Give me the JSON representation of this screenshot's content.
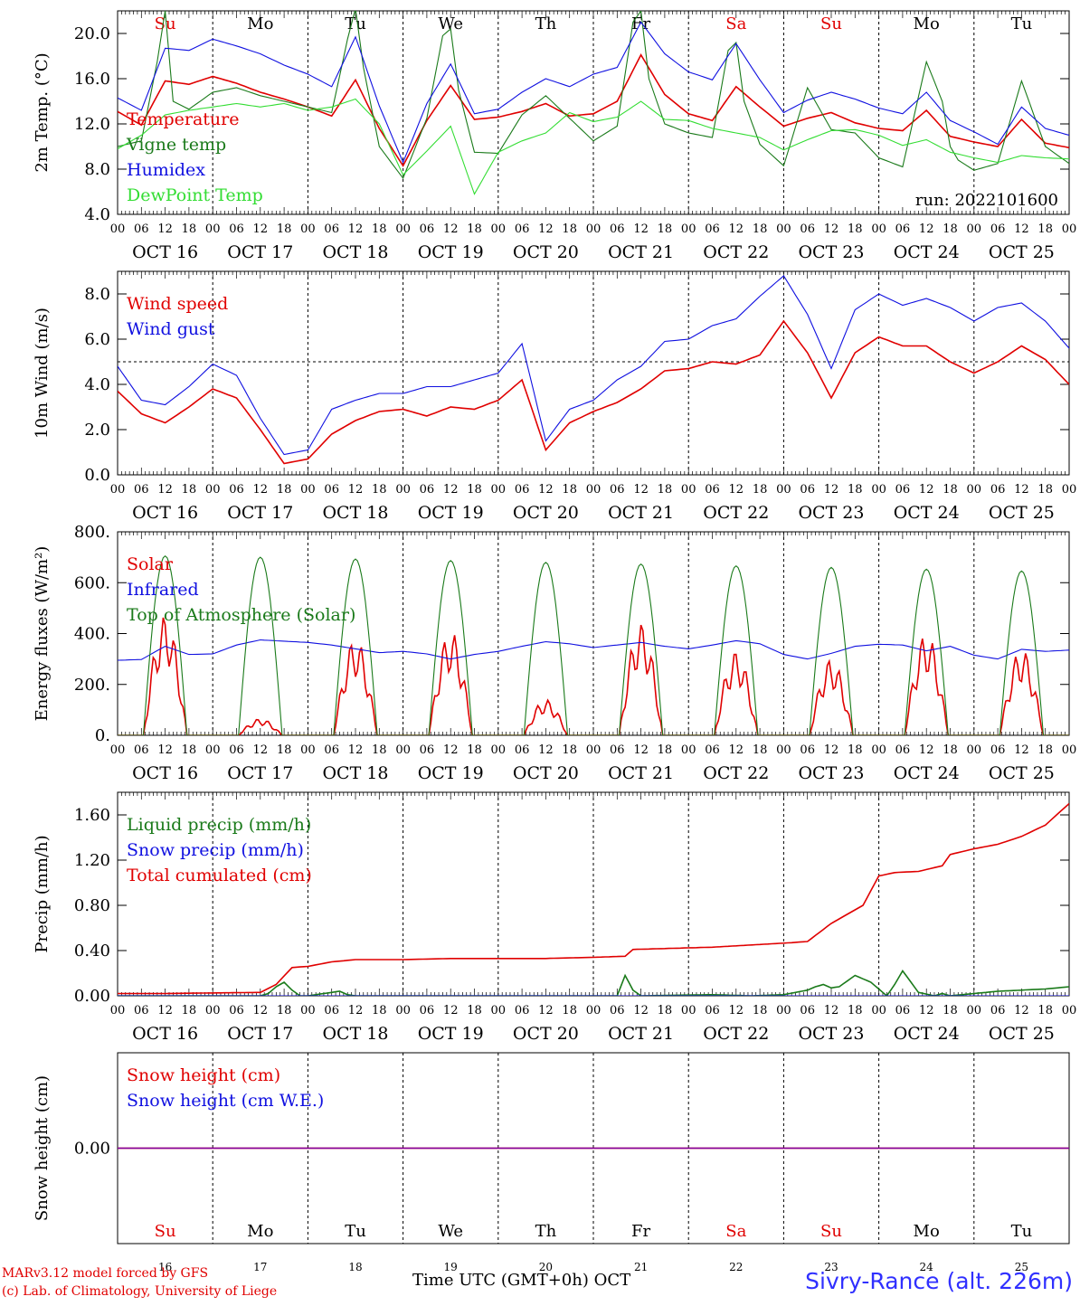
{
  "footer": {
    "model_line": "MARv3.12 model forced by GFS",
    "credit_line": "(c) Lab. of Climatology, University of Liege",
    "station": "Sivry-Rance (alt. 226m)",
    "xlabel": "Time UTC (GMT+0h) OCT"
  },
  "days": {
    "weekdays": [
      "Su",
      "Mo",
      "Tu",
      "We",
      "Th",
      "Fr",
      "Sa",
      "Su",
      "Mo",
      "Tu"
    ],
    "weekend_flags": [
      true,
      false,
      false,
      false,
      false,
      false,
      true,
      true,
      false,
      false
    ],
    "dates": [
      "OCT 16",
      "OCT 17",
      "OCT 18",
      "OCT 19",
      "OCT 20",
      "OCT 21",
      "OCT 22",
      "OCT 23",
      "OCT 24",
      "OCT 25"
    ],
    "day_numbers": [
      "16",
      "17",
      "18",
      "19",
      "20",
      "21",
      "22",
      "23",
      "24",
      "25"
    ],
    "hour_ticks": [
      "00",
      "06",
      "12",
      "18"
    ],
    "final_tick": "00"
  },
  "colors": {
    "red": "#e00000",
    "blue": "#1010e0",
    "green": "#1a7a1a",
    "lightgreen": "#33dd33",
    "purple": "#8000a0"
  },
  "chart_data": [
    {
      "type": "line",
      "ylabel": "2m Temp. (°C)",
      "ylim": [
        4,
        22
      ],
      "yticks": [
        "4.0",
        "8.0",
        "12.0",
        "16.0",
        "20.0"
      ],
      "yticks_values": [
        4,
        8,
        12,
        16,
        20
      ],
      "annotation": "run: 2022101600",
      "x_unit": "hours since OCT 16 00 UTC",
      "series": [
        {
          "name": "Temperature",
          "color": "#e00000",
          "x": [
            0,
            6,
            12,
            18,
            24,
            30,
            36,
            42,
            48,
            54,
            60,
            66,
            72,
            78,
            84,
            90,
            96,
            102,
            108,
            114,
            120,
            126,
            132,
            138,
            144,
            150,
            156,
            162,
            168,
            174,
            180,
            186,
            192,
            198,
            204,
            210,
            216,
            222,
            228,
            234,
            240
          ],
          "values": [
            13.1,
            11.9,
            15.8,
            15.5,
            16.2,
            15.6,
            14.8,
            14.2,
            13.5,
            12.7,
            15.9,
            11.6,
            8.3,
            12.3,
            15.4,
            12.4,
            12.6,
            13.1,
            13.8,
            12.7,
            12.9,
            14.0,
            18.1,
            14.6,
            12.9,
            12.3,
            15.3,
            13.5,
            11.8,
            12.5,
            13.0,
            12.1,
            11.6,
            11.4,
            13.2,
            10.9,
            10.4,
            10.0,
            12.4,
            10.3,
            9.9
          ]
        },
        {
          "name": "Vigne temp",
          "color": "#1a7a1a",
          "x": [
            0,
            6,
            10,
            12,
            14,
            18,
            24,
            30,
            36,
            42,
            48,
            54,
            58,
            60,
            62,
            66,
            72,
            78,
            82,
            84,
            86,
            90,
            96,
            102,
            108,
            114,
            120,
            126,
            130,
            132,
            134,
            138,
            144,
            150,
            154,
            156,
            158,
            162,
            168,
            174,
            180,
            186,
            192,
            198,
            204,
            208,
            210,
            212,
            216,
            222,
            228,
            234,
            240
          ],
          "values": [
            10.0,
            10.5,
            17.5,
            22.0,
            14.0,
            13.3,
            14.8,
            15.2,
            14.5,
            14.0,
            13.5,
            13.0,
            19.5,
            22.2,
            17.0,
            10.0,
            7.2,
            12.5,
            19.8,
            20.4,
            15.0,
            9.5,
            9.4,
            12.8,
            14.5,
            12.5,
            10.5,
            11.8,
            21.0,
            22.0,
            16.0,
            12.0,
            11.2,
            10.8,
            18.5,
            19.2,
            14.0,
            10.2,
            8.3,
            15.2,
            11.5,
            11.2,
            9.0,
            8.2,
            17.5,
            14.0,
            10.0,
            8.8,
            7.9,
            8.5,
            15.8,
            10.0,
            8.5
          ]
        },
        {
          "name": "Humidex",
          "color": "#1010e0",
          "x": [
            0,
            6,
            12,
            18,
            24,
            30,
            36,
            42,
            48,
            54,
            60,
            66,
            72,
            78,
            84,
            90,
            96,
            102,
            108,
            114,
            120,
            126,
            132,
            138,
            144,
            150,
            156,
            162,
            168,
            174,
            180,
            186,
            192,
            198,
            204,
            210,
            216,
            222,
            228,
            234,
            240
          ],
          "values": [
            14.3,
            13.2,
            18.7,
            18.5,
            19.5,
            18.9,
            18.2,
            17.2,
            16.4,
            15.3,
            19.7,
            13.6,
            8.6,
            13.8,
            17.3,
            12.9,
            13.3,
            14.8,
            16.0,
            15.3,
            16.4,
            17.0,
            21.0,
            18.2,
            16.6,
            15.9,
            19.1,
            15.9,
            13.0,
            14.1,
            14.8,
            14.2,
            13.4,
            12.9,
            14.8,
            12.3,
            11.3,
            10.2,
            13.5,
            11.6,
            11.0
          ]
        },
        {
          "name": "DewPoint Temp",
          "color": "#33dd33",
          "x": [
            0,
            6,
            12,
            18,
            24,
            30,
            36,
            42,
            48,
            54,
            60,
            66,
            72,
            78,
            84,
            90,
            96,
            102,
            108,
            114,
            120,
            126,
            132,
            138,
            144,
            150,
            156,
            162,
            168,
            174,
            180,
            186,
            192,
            198,
            204,
            210,
            216,
            222,
            228,
            234,
            240
          ],
          "values": [
            9.8,
            11.0,
            12.8,
            13.2,
            13.5,
            13.8,
            13.5,
            13.8,
            13.2,
            13.5,
            14.2,
            12.0,
            7.5,
            9.6,
            11.8,
            5.8,
            9.5,
            10.5,
            11.2,
            13.0,
            12.2,
            12.6,
            14.0,
            12.4,
            12.3,
            11.6,
            11.2,
            10.8,
            9.7,
            10.6,
            11.4,
            11.5,
            11.0,
            10.1,
            10.6,
            9.5,
            9.0,
            8.6,
            9.2,
            9.0,
            8.9
          ]
        }
      ]
    },
    {
      "type": "line",
      "ylabel": "10m Wind (m/s)",
      "ylim": [
        0,
        9
      ],
      "yticks": [
        "0.0",
        "2.0",
        "4.0",
        "6.0",
        "8.0"
      ],
      "yticks_values": [
        0,
        2,
        4,
        6,
        8
      ],
      "reference_line": 5,
      "x_unit": "hours since OCT 16 00 UTC",
      "series": [
        {
          "name": "Wind speed",
          "color": "#e00000",
          "x": [
            0,
            6,
            12,
            18,
            24,
            30,
            36,
            42,
            48,
            54,
            60,
            66,
            72,
            78,
            84,
            90,
            96,
            102,
            108,
            114,
            120,
            126,
            132,
            138,
            144,
            150,
            156,
            162,
            168,
            174,
            180,
            186,
            192,
            198,
            204,
            210,
            216,
            222,
            228,
            234,
            240
          ],
          "values": [
            3.7,
            2.7,
            2.3,
            3.0,
            3.8,
            3.4,
            2.0,
            0.5,
            0.7,
            1.8,
            2.4,
            2.8,
            2.9,
            2.6,
            3.0,
            2.9,
            3.3,
            4.2,
            1.1,
            2.3,
            2.8,
            3.2,
            3.8,
            4.6,
            4.7,
            5.0,
            4.9,
            5.3,
            6.8,
            5.4,
            3.4,
            5.4,
            6.1,
            5.7,
            5.7,
            5.0,
            4.5,
            5.0,
            5.7,
            5.1,
            4.0
          ]
        },
        {
          "name": "Wind gust",
          "color": "#1010e0",
          "x": [
            0,
            6,
            12,
            18,
            24,
            30,
            36,
            42,
            48,
            54,
            60,
            66,
            72,
            78,
            84,
            90,
            96,
            102,
            108,
            114,
            120,
            126,
            132,
            138,
            144,
            150,
            156,
            162,
            168,
            174,
            180,
            186,
            192,
            198,
            204,
            210,
            216,
            222,
            228,
            234,
            240
          ],
          "values": [
            4.8,
            3.3,
            3.1,
            3.9,
            4.9,
            4.4,
            2.5,
            0.9,
            1.1,
            2.9,
            3.3,
            3.6,
            3.6,
            3.9,
            3.9,
            4.2,
            4.5,
            5.8,
            1.5,
            2.9,
            3.3,
            4.2,
            4.8,
            5.9,
            6.0,
            6.6,
            6.9,
            7.9,
            8.8,
            7.1,
            4.7,
            7.3,
            8.0,
            7.5,
            7.8,
            7.4,
            6.8,
            7.4,
            7.6,
            6.8,
            5.6
          ]
        }
      ]
    },
    {
      "type": "line",
      "ylabel": "Energy fluxes (W/m²)",
      "ylim": [
        0,
        800
      ],
      "yticks": [
        "0.",
        "200.",
        "400.",
        "600.",
        "800."
      ],
      "yticks_values": [
        0,
        200,
        400,
        600,
        800
      ],
      "x_unit": "hours since OCT 16 00 UTC",
      "toa_peaks": [
        705,
        700,
        693,
        687,
        680,
        673,
        666,
        660,
        653,
        646
      ],
      "solar_peaks": [
        470,
        65,
        380,
        410,
        140,
        440,
        330,
        300,
        400,
        340
      ],
      "series": [
        {
          "name": "Solar",
          "color": "#e00000"
        },
        {
          "name": "Infrared",
          "color": "#1010e0",
          "x": [
            0,
            6,
            12,
            18,
            24,
            30,
            36,
            42,
            48,
            54,
            60,
            66,
            72,
            78,
            84,
            90,
            96,
            102,
            108,
            114,
            120,
            126,
            132,
            138,
            144,
            150,
            156,
            162,
            168,
            174,
            180,
            186,
            192,
            198,
            204,
            210,
            216,
            222,
            228,
            234,
            240
          ],
          "values": [
            295,
            298,
            350,
            318,
            320,
            355,
            375,
            370,
            365,
            355,
            340,
            325,
            330,
            320,
            300,
            318,
            330,
            350,
            368,
            360,
            345,
            355,
            365,
            350,
            340,
            355,
            372,
            360,
            318,
            300,
            322,
            350,
            358,
            355,
            332,
            350,
            315,
            300,
            338,
            330,
            335
          ]
        },
        {
          "name": "Top of Atmosphere (Solar)",
          "color": "#1a7a1a"
        }
      ]
    },
    {
      "type": "line",
      "ylabel": "Precip (mm/h)",
      "ylim": [
        0,
        1.8
      ],
      "yticks": [
        "0.00",
        "0.40",
        "0.80",
        "1.20",
        "1.60"
      ],
      "yticks_values": [
        0,
        0.4,
        0.8,
        1.2,
        1.6
      ],
      "x_unit": "hours since OCT 16 00 UTC",
      "series": [
        {
          "name": "Liquid precip (mm/h)",
          "color": "#1a7a1a",
          "x": [
            0,
            14,
            14.5,
            15,
            36,
            38,
            40,
            42,
            44,
            46,
            48,
            54,
            56,
            58,
            60,
            126,
            128,
            130,
            132,
            150,
            160,
            168,
            174,
            176,
            178,
            180,
            182,
            186,
            190,
            194,
            196,
            198,
            202,
            206,
            208,
            210,
            216,
            222,
            228,
            234,
            240
          ],
          "values": [
            0,
            0,
            0.05,
            0,
            0,
            0.02,
            0.08,
            0.12,
            0.05,
            0,
            0,
            0.03,
            0.04,
            0.01,
            0,
            0,
            0.18,
            0.05,
            0,
            0.01,
            0,
            0.01,
            0.05,
            0.08,
            0.1,
            0.07,
            0.08,
            0.18,
            0.12,
            0,
            0.1,
            0.22,
            0.03,
            0,
            0.02,
            0,
            0.02,
            0.04,
            0.05,
            0.06,
            0.08
          ]
        },
        {
          "name": "Snow precip (mm/h)",
          "color": "#1010e0",
          "x": [
            0,
            240
          ],
          "values": [
            0,
            0
          ]
        },
        {
          "name": "Total cumulated (cm)",
          "color": "#e00000",
          "x": [
            0,
            12,
            36,
            40,
            44,
            48,
            54,
            60,
            72,
            84,
            96,
            108,
            120,
            128,
            130,
            140,
            150,
            160,
            170,
            174,
            180,
            188,
            192,
            196,
            202,
            208,
            210,
            216,
            222,
            228,
            234,
            240
          ],
          "values": [
            0.02,
            0.02,
            0.03,
            0.1,
            0.25,
            0.26,
            0.3,
            0.32,
            0.32,
            0.33,
            0.33,
            0.33,
            0.34,
            0.35,
            0.41,
            0.42,
            0.43,
            0.45,
            0.47,
            0.48,
            0.64,
            0.8,
            1.06,
            1.09,
            1.1,
            1.15,
            1.25,
            1.3,
            1.34,
            1.41,
            1.51,
            1.7
          ]
        }
      ]
    },
    {
      "type": "line",
      "ylabel": "Snow height (cm)",
      "yticks": [
        "0.00"
      ],
      "yticks_values": [
        0
      ],
      "ylim": [
        -1,
        1
      ],
      "x_unit": "hours since OCT 16 00 UTC",
      "series": [
        {
          "name": "Snow height (cm)",
          "color": "#e00000",
          "x": [
            0,
            240
          ],
          "values": [
            0,
            0
          ]
        },
        {
          "name": "Snow height (cm W.E.)",
          "color": "#1010e0",
          "x": [
            0,
            240
          ],
          "values": [
            0,
            0
          ]
        }
      ]
    }
  ]
}
